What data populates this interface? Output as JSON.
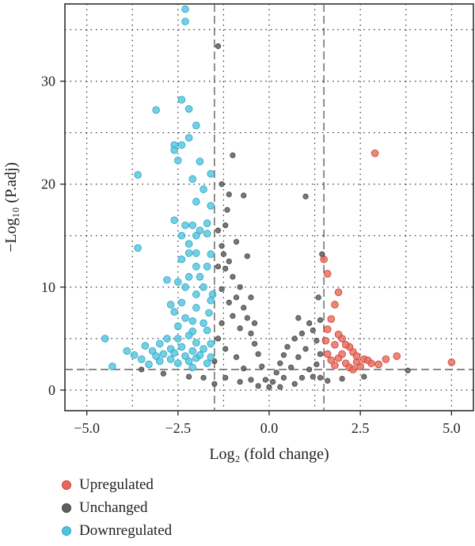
{
  "chart_data": {
    "type": "scatter",
    "title": "",
    "xlabel": "Log₂ (fold change)",
    "ylabel": "−Log₁₀ (P.adj)",
    "xlim": [
      -5.6,
      5.6
    ],
    "ylim": [
      -2,
      37.5
    ],
    "x_ticks": [
      -5.0,
      -2.5,
      0.0,
      2.5,
      5.0
    ],
    "x_tick_labels": [
      "−5.0",
      "−2.5",
      "0.0",
      "2.5",
      "5.0"
    ],
    "y_ticks": [
      0,
      10,
      20,
      30
    ],
    "y_tick_labels": [
      "0",
      "10",
      "20",
      "30"
    ],
    "grid": true,
    "thresholds": {
      "fold_change": [
        -1.5,
        1.5
      ],
      "p_adj": 2
    },
    "legend_position": "bottom-left",
    "series": [
      {
        "name": "Upregulated",
        "color": "#e8675a",
        "points": [
          [
            2.9,
            23
          ],
          [
            5.0,
            2.7
          ],
          [
            1.5,
            12.7
          ],
          [
            1.6,
            11.3
          ],
          [
            1.9,
            9.5
          ],
          [
            1.8,
            8.3
          ],
          [
            3.5,
            3.3
          ],
          [
            3.2,
            3.0
          ],
          [
            2.8,
            2.6
          ],
          [
            2.6,
            3.0
          ],
          [
            2.4,
            2.7
          ],
          [
            2.3,
            3.7
          ],
          [
            2.2,
            4.2
          ],
          [
            2.0,
            5.0
          ],
          [
            1.7,
            6.9
          ],
          [
            1.6,
            5.9
          ],
          [
            2.1,
            4.4
          ],
          [
            1.8,
            4.4
          ],
          [
            1.9,
            3.1
          ],
          [
            2.5,
            2.3
          ],
          [
            2.1,
            2.6
          ],
          [
            1.7,
            2.9
          ],
          [
            2.0,
            3.5
          ],
          [
            1.6,
            3.5
          ],
          [
            1.8,
            2.4
          ],
          [
            2.7,
            2.9
          ],
          [
            2.4,
            3.3
          ],
          [
            1.55,
            4.8
          ],
          [
            1.9,
            5.4
          ],
          [
            2.2,
            2.2
          ],
          [
            3.0,
            2.5
          ],
          [
            2.3,
            2.0
          ]
        ]
      },
      {
        "name": "Unchanged",
        "color": "#5f5f5f",
        "points": [
          [
            -1.4,
            33.4
          ],
          [
            -1.0,
            22.8
          ],
          [
            -0.7,
            18.9
          ],
          [
            -1.3,
            20.0
          ],
          [
            -1.1,
            19.0
          ],
          [
            -1.2,
            16.0
          ],
          [
            -1.4,
            15.5
          ],
          [
            -1.3,
            14.0
          ],
          [
            -1.1,
            12.5
          ],
          [
            -1.0,
            11.0
          ],
          [
            -1.2,
            11.8
          ],
          [
            -1.4,
            12.0
          ],
          [
            -0.8,
            10.0
          ],
          [
            -0.9,
            9.0
          ],
          [
            -0.7,
            8.0
          ],
          [
            -1.3,
            9.8
          ],
          [
            -0.6,
            7.0
          ],
          [
            -1.1,
            8.5
          ],
          [
            -0.5,
            5.5
          ],
          [
            -0.4,
            4.5
          ],
          [
            -0.3,
            3.5
          ],
          [
            -0.2,
            2.3
          ],
          [
            -0.1,
            1.0
          ],
          [
            -0.8,
            6.0
          ],
          [
            -1.0,
            7.2
          ],
          [
            -1.3,
            6.5
          ],
          [
            -1.4,
            5.0
          ],
          [
            -1.2,
            4.0
          ],
          [
            -0.9,
            3.2
          ],
          [
            -0.7,
            2.1
          ],
          [
            -0.5,
            1.0
          ],
          [
            -1.5,
            2.8
          ],
          [
            0.0,
            0.3
          ],
          [
            0.1,
            0.8
          ],
          [
            0.2,
            1.7
          ],
          [
            0.3,
            2.6
          ],
          [
            0.4,
            3.4
          ],
          [
            0.5,
            4.2
          ],
          [
            0.7,
            5.0
          ],
          [
            0.9,
            5.5
          ],
          [
            1.1,
            6.5
          ],
          [
            1.2,
            5.8
          ],
          [
            1.3,
            4.8
          ],
          [
            1.4,
            6.8
          ],
          [
            1.0,
            4.0
          ],
          [
            0.8,
            3.2
          ],
          [
            0.6,
            2.2
          ],
          [
            0.4,
            1.2
          ],
          [
            1.3,
            2.5
          ],
          [
            1.4,
            3.5
          ],
          [
            1.1,
            2.0
          ],
          [
            0.9,
            1.2
          ],
          [
            0.7,
            0.6
          ],
          [
            1.2,
            1.3
          ],
          [
            1.4,
            1.2
          ],
          [
            0.3,
            0.3
          ],
          [
            -0.3,
            0.4
          ],
          [
            -0.8,
            0.8
          ],
          [
            -1.2,
            1.2
          ],
          [
            -1.5,
            0.6
          ],
          [
            -1.8,
            1.2
          ],
          [
            -2.2,
            1.3
          ],
          [
            1.6,
            0.9
          ],
          [
            2.0,
            1.1
          ],
          [
            2.6,
            1.3
          ],
          [
            3.8,
            1.9
          ],
          [
            -3.5,
            2.0
          ],
          [
            -2.9,
            1.6
          ],
          [
            -0.6,
            13.0
          ],
          [
            -0.9,
            14.4
          ],
          [
            1.0,
            18.8
          ],
          [
            -1.15,
            17.5
          ],
          [
            -1.25,
            13.2
          ],
          [
            -0.5,
            9.0
          ],
          [
            -0.4,
            6.5
          ],
          [
            0.8,
            7.0
          ],
          [
            1.35,
            9.0
          ],
          [
            1.45,
            13.2
          ]
        ]
      },
      {
        "name": "Downregulated",
        "color": "#4fc3dd",
        "points": [
          [
            -2.3,
            37.0
          ],
          [
            -2.3,
            35.8
          ],
          [
            -2.4,
            28.2
          ],
          [
            -2.2,
            27.3
          ],
          [
            -3.1,
            27.2
          ],
          [
            -2.0,
            25.7
          ],
          [
            -2.2,
            24.5
          ],
          [
            -2.6,
            23.8
          ],
          [
            -2.4,
            23.8
          ],
          [
            -2.6,
            23.3
          ],
          [
            -2.5,
            22.3
          ],
          [
            -1.9,
            22.2
          ],
          [
            -1.6,
            21.0
          ],
          [
            -3.6,
            20.9
          ],
          [
            -2.1,
            20.5
          ],
          [
            -1.8,
            19.5
          ],
          [
            -2.0,
            18.3
          ],
          [
            -2.6,
            16.5
          ],
          [
            -2.3,
            16.0
          ],
          [
            -2.1,
            16.0
          ],
          [
            -1.6,
            17.9
          ],
          [
            -1.7,
            16.2
          ],
          [
            -1.9,
            15.5
          ],
          [
            -1.7,
            15.2
          ],
          [
            -2.4,
            15.0
          ],
          [
            -2.0,
            15.0
          ],
          [
            -2.2,
            14.2
          ],
          [
            -3.6,
            13.8
          ],
          [
            -2.2,
            13.3
          ],
          [
            -2.0,
            13.3
          ],
          [
            -1.6,
            13.2
          ],
          [
            -2.4,
            12.7
          ],
          [
            -2.0,
            12.0
          ],
          [
            -1.7,
            12.0
          ],
          [
            -2.2,
            11.0
          ],
          [
            -2.8,
            10.7
          ],
          [
            -2.5,
            10.5
          ],
          [
            -2.3,
            10.0
          ],
          [
            -1.8,
            10.0
          ],
          [
            -2.0,
            9.3
          ],
          [
            -2.4,
            8.5
          ],
          [
            -2.7,
            8.3
          ],
          [
            -2.0,
            8.0
          ],
          [
            -1.6,
            8.7
          ],
          [
            -2.6,
            7.6
          ],
          [
            -2.3,
            7.0
          ],
          [
            -2.1,
            6.7
          ],
          [
            -1.8,
            6.5
          ],
          [
            -2.5,
            6.2
          ],
          [
            -2.1,
            5.7
          ],
          [
            -1.7,
            5.8
          ],
          [
            -2.8,
            5.0
          ],
          [
            -2.5,
            5.0
          ],
          [
            -2.2,
            5.3
          ],
          [
            -2.0,
            4.6
          ],
          [
            -3.0,
            4.5
          ],
          [
            -3.4,
            4.3
          ],
          [
            -3.2,
            3.8
          ],
          [
            -2.7,
            4.0
          ],
          [
            -2.4,
            4.2
          ],
          [
            -2.1,
            3.8
          ],
          [
            -1.8,
            4.0
          ],
          [
            -1.6,
            4.5
          ],
          [
            -3.7,
            3.4
          ],
          [
            -3.9,
            3.8
          ],
          [
            -4.5,
            5.0
          ],
          [
            -4.3,
            2.3
          ],
          [
            -3.3,
            2.5
          ],
          [
            -3.0,
            2.8
          ],
          [
            -2.7,
            3.0
          ],
          [
            -2.5,
            2.6
          ],
          [
            -2.2,
            2.8
          ],
          [
            -2.0,
            3.1
          ],
          [
            -1.7,
            2.6
          ],
          [
            -1.6,
            3.2
          ],
          [
            -3.5,
            3.0
          ],
          [
            -3.1,
            3.3
          ],
          [
            -2.9,
            3.5
          ],
          [
            -2.6,
            3.6
          ],
          [
            -2.3,
            3.3
          ],
          [
            -1.9,
            3.4
          ],
          [
            -1.65,
            7.5
          ],
          [
            -1.55,
            9.3
          ],
          [
            -1.9,
            11.0
          ],
          [
            -2.1,
            2.2
          ]
        ]
      }
    ]
  }
}
